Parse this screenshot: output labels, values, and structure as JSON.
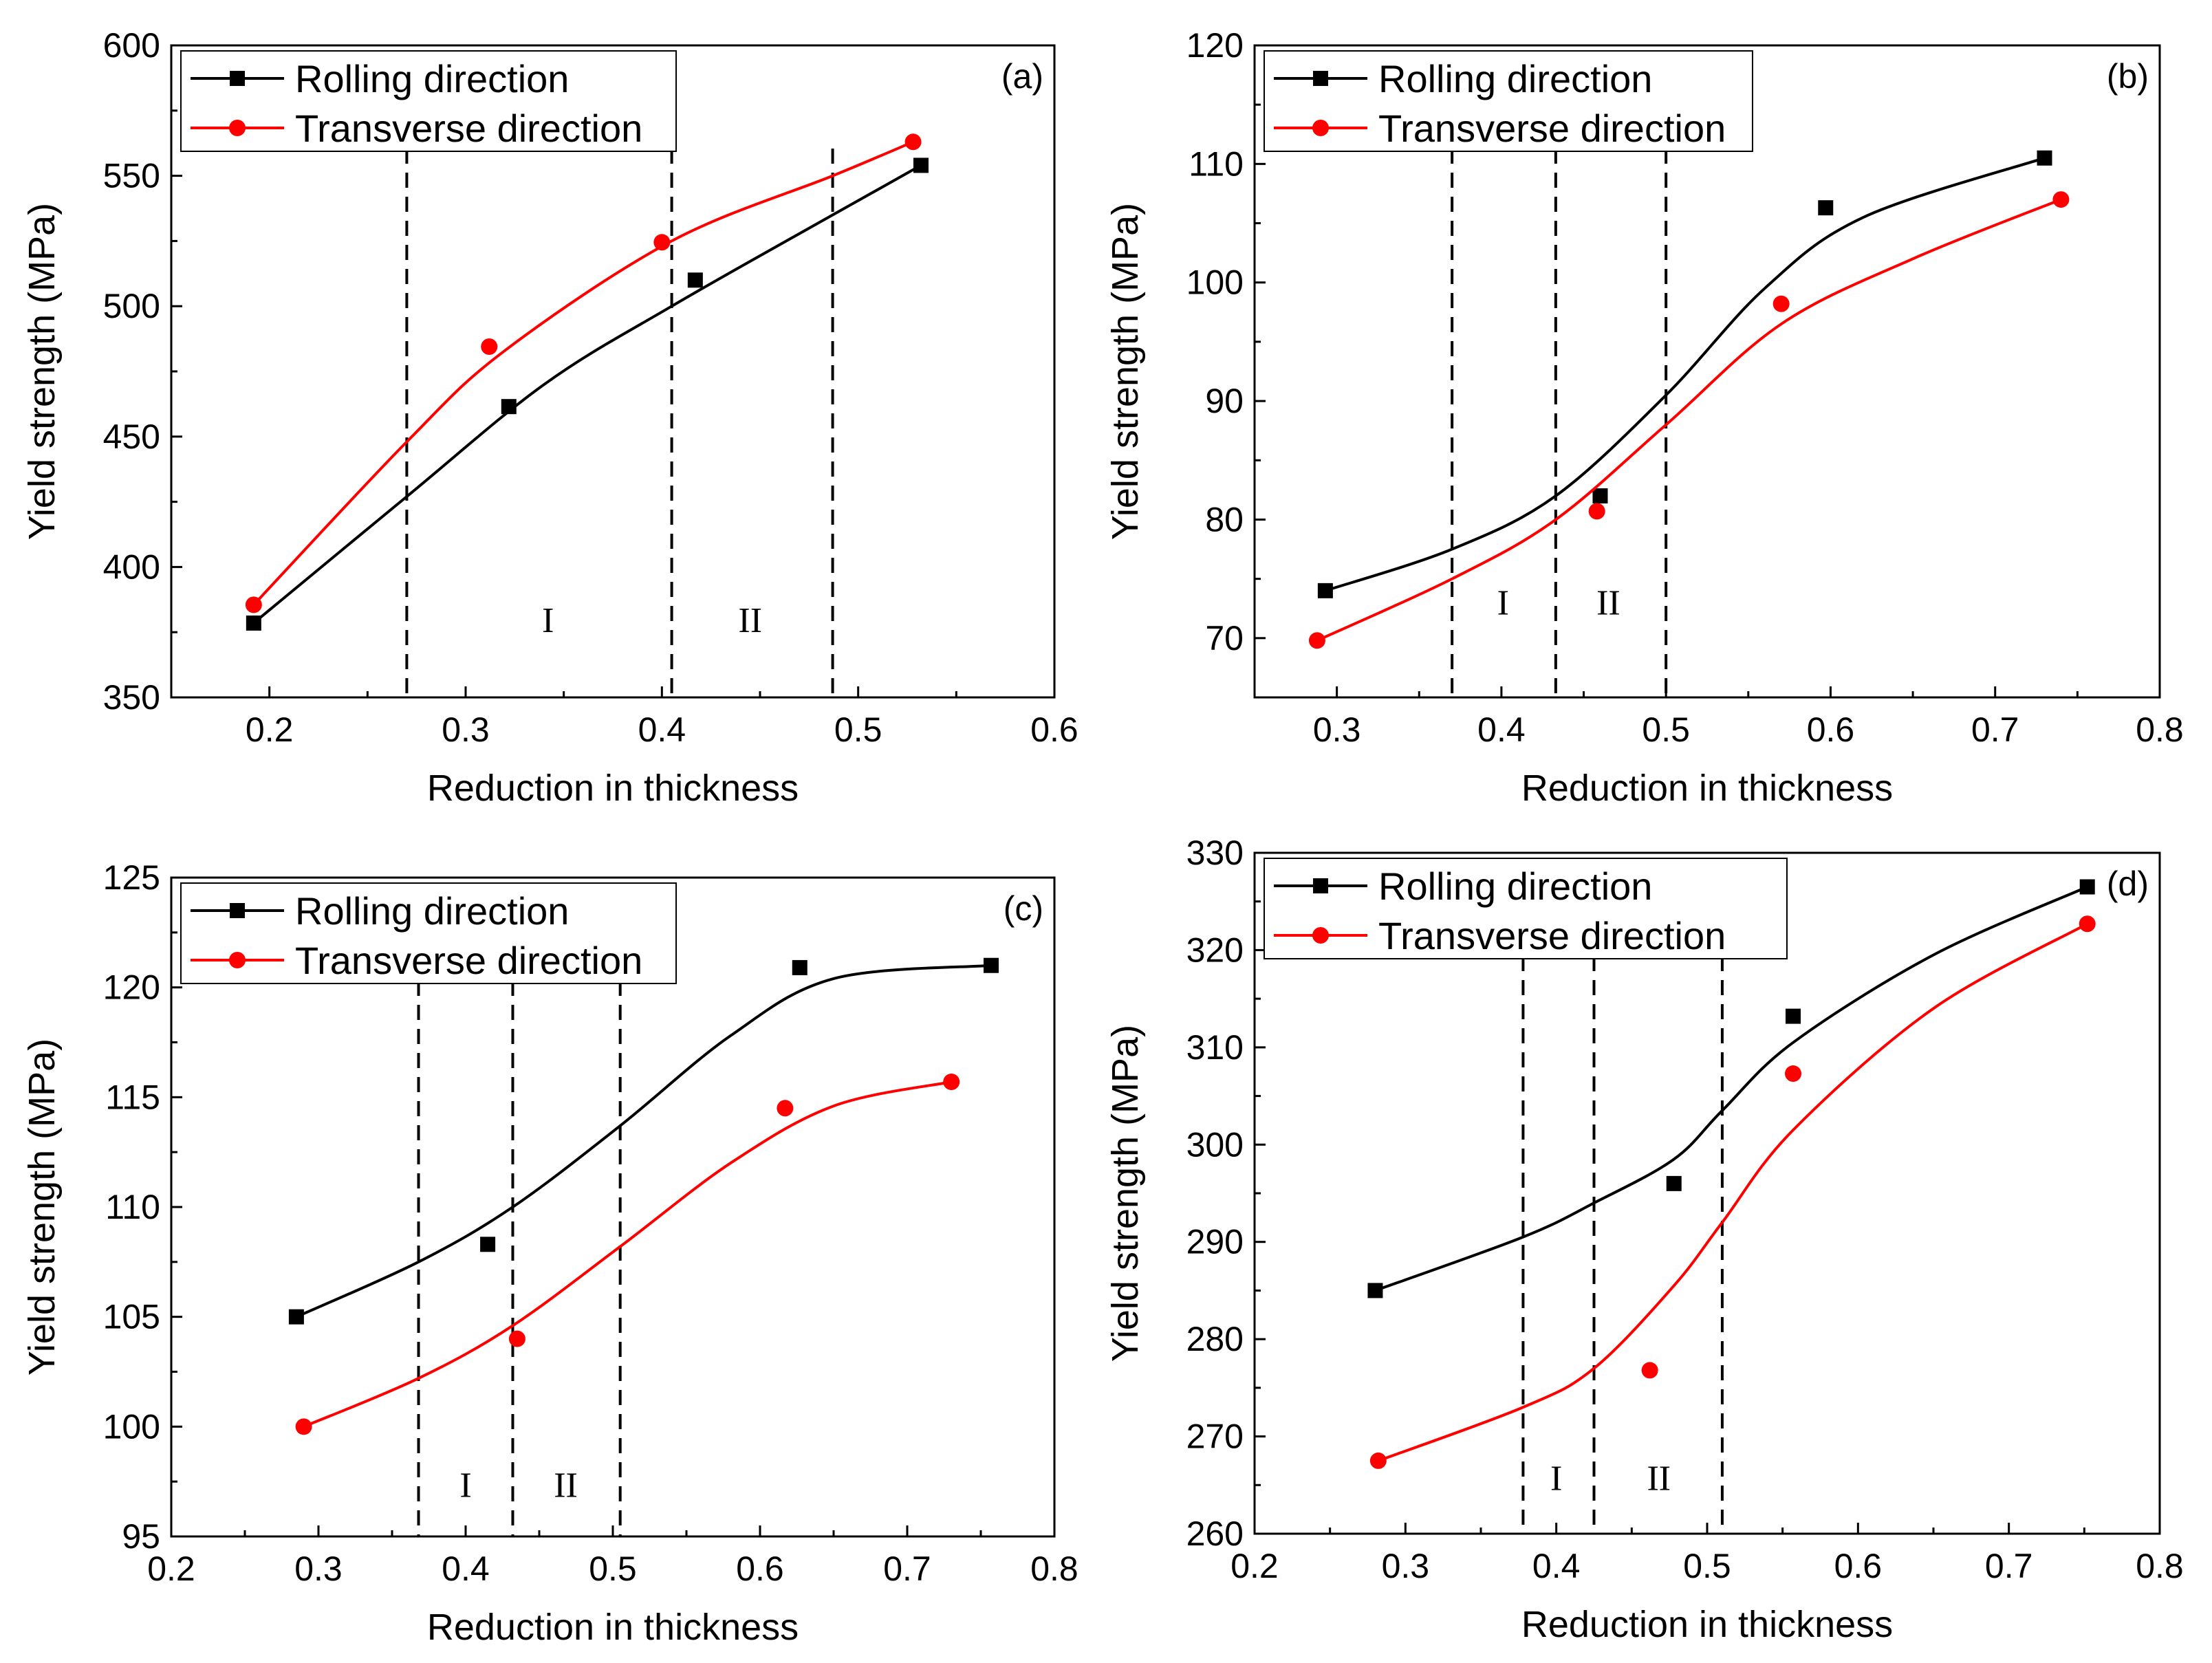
{
  "chart_data": [
    {
      "panel": "(a)",
      "type": "line",
      "xlabel": "Reduction in thickness",
      "ylabel": "Yield strength (MPa)",
      "xlim": [
        0.15,
        0.6
      ],
      "ylim": [
        350,
        600
      ],
      "xticks": [
        0.2,
        0.3,
        0.4,
        0.5,
        0.6
      ],
      "yticks": [
        350,
        400,
        450,
        500,
        550,
        600
      ],
      "xtick_labels": [
        "0.2",
        "0.3",
        "0.4",
        "0.5",
        "0.6"
      ],
      "ytick_labels": [
        "350",
        "400",
        "450",
        "500",
        "550",
        "600"
      ],
      "grid": false,
      "legend_position": "top-left",
      "dashed_lines_x": [
        0.27,
        0.405,
        0.487
      ],
      "regions": [
        {
          "label": "I",
          "x": 0.342,
          "y": 375
        },
        {
          "label": "II",
          "x": 0.445,
          "y": 375
        }
      ],
      "series": [
        {
          "name": "Rolling direction",
          "color": "#000000",
          "marker": "square",
          "points": [
            [
              0.192,
              378.5
            ],
            [
              0.322,
              461.5
            ],
            [
              0.417,
              510
            ],
            [
              0.532,
              554
            ]
          ],
          "fit": [
            [
              0.192,
              378.5
            ],
            [
              0.27,
              427
            ],
            [
              0.34,
              470
            ],
            [
              0.405,
              500
            ],
            [
              0.487,
              535
            ],
            [
              0.532,
              554
            ]
          ]
        },
        {
          "name": "Transverse direction",
          "color": "#ff0000",
          "marker": "circle",
          "points": [
            [
              0.192,
              385.5
            ],
            [
              0.312,
              484.5
            ],
            [
              0.4,
              524.5
            ],
            [
              0.528,
              563
            ]
          ],
          "fit": [
            [
              0.192,
              385.5
            ],
            [
              0.27,
              448
            ],
            [
              0.32,
              483
            ],
            [
              0.405,
              525
            ],
            [
              0.487,
              550
            ],
            [
              0.528,
              563
            ]
          ]
        }
      ]
    },
    {
      "panel": "(b)",
      "type": "line",
      "xlabel": "Reduction in thickness",
      "ylabel": "Yield strength (MPa)",
      "xlim": [
        0.25,
        0.8
      ],
      "ylim": [
        65,
        120
      ],
      "xticks": [
        0.3,
        0.4,
        0.5,
        0.6,
        0.7,
        0.8
      ],
      "yticks": [
        70,
        80,
        90,
        100,
        110,
        120
      ],
      "xtick_labels": [
        "0.3",
        "0.4",
        "0.5",
        "0.6",
        "0.7",
        "0.8"
      ],
      "ytick_labels": [
        "70",
        "80",
        "90",
        "100",
        "110",
        "120"
      ],
      "grid": false,
      "legend_position": "top-left",
      "dashed_lines_x": [
        0.37,
        0.433,
        0.5
      ],
      "regions": [
        {
          "label": "I",
          "x": 0.401,
          "y": 72
        },
        {
          "label": "II",
          "x": 0.465,
          "y": 72
        }
      ],
      "series": [
        {
          "name": "Rolling direction",
          "color": "#000000",
          "marker": "square",
          "points": [
            [
              0.293,
              74
            ],
            [
              0.46,
              82
            ],
            [
              0.597,
              106.3
            ],
            [
              0.73,
              110.5
            ]
          ],
          "fit": [
            [
              0.293,
              74
            ],
            [
              0.37,
              77.5
            ],
            [
              0.433,
              82
            ],
            [
              0.5,
              90.5
            ],
            [
              0.56,
              99.5
            ],
            [
              0.62,
              105.5
            ],
            [
              0.73,
              110.5
            ]
          ]
        },
        {
          "name": "Transverse direction",
          "color": "#ff0000",
          "marker": "circle",
          "points": [
            [
              0.288,
              69.8
            ],
            [
              0.458,
              80.7
            ],
            [
              0.57,
              98.2
            ],
            [
              0.74,
              107
            ]
          ],
          "fit": [
            [
              0.288,
              69.8
            ],
            [
              0.37,
              75
            ],
            [
              0.433,
              80
            ],
            [
              0.5,
              88
            ],
            [
              0.57,
              96.5
            ],
            [
              0.65,
              102
            ],
            [
              0.74,
              107
            ]
          ]
        }
      ]
    },
    {
      "panel": "(c)",
      "type": "line",
      "xlabel": "Reduction in thickness",
      "ylabel": "Yield strength (MPa)",
      "xlim": [
        0.2,
        0.8
      ],
      "ylim": [
        95,
        125
      ],
      "xticks": [
        0.2,
        0.3,
        0.4,
        0.5,
        0.6,
        0.7,
        0.8
      ],
      "yticks": [
        95,
        100,
        105,
        110,
        115,
        120,
        125
      ],
      "xtick_labels": [
        "0.2",
        "0.3",
        "0.4",
        "0.5",
        "0.6",
        "0.7",
        "0.8"
      ],
      "ytick_labels": [
        "95",
        "100",
        "105",
        "110",
        "115",
        "120",
        "125"
      ],
      "grid": false,
      "legend_position": "top-left",
      "dashed_lines_x": [
        0.368,
        0.432,
        0.505
      ],
      "regions": [
        {
          "label": "I",
          "x": 0.4,
          "y": 96.8
        },
        {
          "label": "II",
          "x": 0.468,
          "y": 96.8
        }
      ],
      "series": [
        {
          "name": "Rolling direction",
          "color": "#000000",
          "marker": "square",
          "points": [
            [
              0.285,
              105
            ],
            [
              0.415,
              108.3
            ],
            [
              0.627,
              120.9
            ],
            [
              0.757,
              121
            ]
          ],
          "fit": [
            [
              0.285,
              105
            ],
            [
              0.368,
              107.5
            ],
            [
              0.432,
              110
            ],
            [
              0.505,
              113.7
            ],
            [
              0.58,
              117.8
            ],
            [
              0.65,
              120.4
            ],
            [
              0.757,
              121
            ]
          ]
        },
        {
          "name": "Transverse direction",
          "color": "#ff0000",
          "marker": "circle",
          "points": [
            [
              0.29,
              100
            ],
            [
              0.435,
              104
            ],
            [
              0.617,
              114.5
            ],
            [
              0.73,
              115.7
            ]
          ],
          "fit": [
            [
              0.29,
              100
            ],
            [
              0.368,
              102.2
            ],
            [
              0.432,
              104.6
            ],
            [
              0.505,
              108.2
            ],
            [
              0.58,
              112
            ],
            [
              0.65,
              114.6
            ],
            [
              0.73,
              115.7
            ]
          ]
        }
      ]
    },
    {
      "panel": "(d)",
      "type": "line",
      "xlabel": "Reduction in thickness",
      "ylabel": "Yield strength (MPa)",
      "xlim": [
        0.2,
        0.8
      ],
      "ylim": [
        260,
        330
      ],
      "xticks": [
        0.2,
        0.3,
        0.4,
        0.5,
        0.6,
        0.7,
        0.8
      ],
      "yticks": [
        260,
        270,
        280,
        290,
        300,
        310,
        320,
        330
      ],
      "xtick_labels": [
        "0.2",
        "0.3",
        "0.4",
        "0.5",
        "0.6",
        "0.7",
        "0.8"
      ],
      "ytick_labels": [
        "260",
        "270",
        "280",
        "290",
        "300",
        "310",
        "320",
        "330"
      ],
      "grid": false,
      "legend_position": "top-left",
      "dashed_lines_x": [
        0.378,
        0.425,
        0.51
      ],
      "regions": [
        {
          "label": "I",
          "x": 0.4,
          "y": 264.5
        },
        {
          "label": "II",
          "x": 0.468,
          "y": 264.5
        }
      ],
      "series": [
        {
          "name": "Rolling direction",
          "color": "#000000",
          "marker": "square",
          "points": [
            [
              0.28,
              285
            ],
            [
              0.478,
              296
            ],
            [
              0.557,
              313.2
            ],
            [
              0.752,
              326.5
            ]
          ],
          "fit": [
            [
              0.28,
              285
            ],
            [
              0.378,
              290.5
            ],
            [
              0.425,
              294
            ],
            [
              0.478,
              298.5
            ],
            [
              0.51,
              303.5
            ],
            [
              0.557,
              310.5
            ],
            [
              0.65,
              319.5
            ],
            [
              0.752,
              326.5
            ]
          ]
        },
        {
          "name": "Transverse direction",
          "color": "#ff0000",
          "marker": "circle",
          "points": [
            [
              0.282,
              267.5
            ],
            [
              0.462,
              276.8
            ],
            [
              0.557,
              307.3
            ],
            [
              0.752,
              322.7
            ]
          ],
          "fit": [
            [
              0.282,
              267.5
            ],
            [
              0.378,
              273
            ],
            [
              0.425,
              277
            ],
            [
              0.478,
              285.5
            ],
            [
              0.51,
              292
            ],
            [
              0.557,
              301.5
            ],
            [
              0.65,
              314
            ],
            [
              0.752,
              322.7
            ]
          ]
        }
      ]
    }
  ]
}
